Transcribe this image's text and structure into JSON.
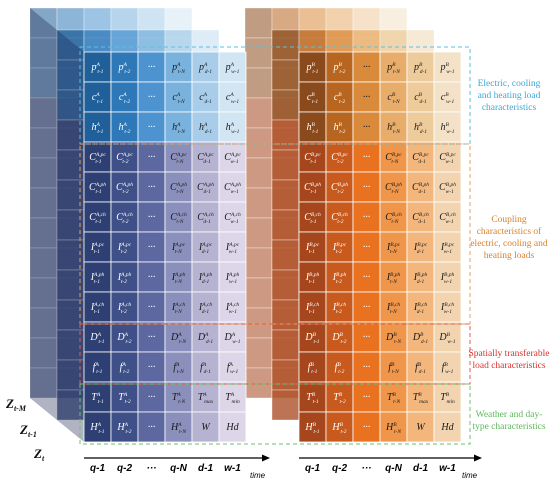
{
  "panels": [
    {
      "colors": [
        "#2e3f73",
        "#3f4f88",
        "#5c689f",
        "#8a8fbb",
        "#b6b3d2",
        "#dcd6e8"
      ],
      "top_colors": [
        "#1f5f9a",
        "#2f78b8",
        "#4c93cf",
        "#7ab2de",
        "#a8cdea",
        "#d2e5f3"
      ],
      "columns": [
        {
          "sub": "t-1"
        },
        {
          "sub": "t-2"
        },
        {
          "text": "···"
        },
        {
          "sub": "t-N"
        },
        {
          "sub": "d-1"
        },
        {
          "sub": "w-1"
        }
      ],
      "rows": [
        {
          "sym": "p",
          "sup": "A"
        },
        {
          "sym": "c",
          "sup": "A"
        },
        {
          "sym": "h",
          "sup": "A"
        },
        {
          "sym": "C",
          "sup": "A,pc"
        },
        {
          "sym": "C",
          "sup": "A,ph"
        },
        {
          "sym": "C",
          "sup": "A,ch"
        },
        {
          "sym": "I",
          "sup": "A,pc"
        },
        {
          "sym": "I",
          "sup": "A,ph"
        },
        {
          "sym": "I",
          "sup": "A,ch"
        },
        {
          "sym": "D",
          "sup": "A"
        },
        {
          "sym": "f",
          "sup": "A"
        },
        {
          "sym": "T",
          "sup": "A",
          "columns": [
            {
              "sub": "t-1"
            },
            {
              "sub": "t-2"
            },
            {
              "text": "···"
            },
            {
              "sub": "t-N"
            },
            {
              "sub": "max"
            },
            {
              "sub": "min"
            }
          ]
        },
        {
          "sym": "H",
          "sup": "A",
          "columns": [
            {
              "sub": "t-1"
            },
            {
              "sub": "t-2"
            },
            {
              "text": "···"
            },
            {
              "sub": "t-N"
            },
            {
              "text": "W"
            },
            {
              "text": "Hd"
            }
          ]
        }
      ]
    },
    {
      "colors": [
        "#a6461c",
        "#c85a1e",
        "#e8721f",
        "#f0964a",
        "#f3b77e",
        "#f2d5b0"
      ],
      "top_colors": [
        "#8a4a1c",
        "#b8651f",
        "#d98a3a",
        "#e8ad6a",
        "#eecb9a",
        "#f3e2c8"
      ],
      "columns": [
        {
          "sub": "t-1"
        },
        {
          "sub": "t-2"
        },
        {
          "text": "···"
        },
        {
          "sub": "t-N"
        },
        {
          "sub": "d-1"
        },
        {
          "sub": "w-1"
        }
      ],
      "rows": [
        {
          "sym": "p",
          "sup": "B"
        },
        {
          "sym": "c",
          "sup": "B"
        },
        {
          "sym": "h",
          "sup": "B"
        },
        {
          "sym": "C",
          "sup": "B,pc"
        },
        {
          "sym": "C",
          "sup": "B,ph"
        },
        {
          "sym": "C",
          "sup": "B,ch"
        },
        {
          "sym": "I",
          "sup": "B,pc"
        },
        {
          "sym": "I",
          "sup": "B,ph"
        },
        {
          "sym": "I",
          "sup": "B,ch"
        },
        {
          "sym": "D",
          "sup": "B"
        },
        {
          "sym": "f",
          "sup": "B"
        },
        {
          "sym": "T",
          "sup": "B",
          "columns": [
            {
              "sub": "t-1"
            },
            {
              "sub": "t-2"
            },
            {
              "text": "···"
            },
            {
              "sub": "t-N"
            },
            {
              "sub": "max"
            },
            {
              "sub": "min"
            }
          ]
        },
        {
          "sym": "H",
          "sup": "B",
          "columns": [
            {
              "sub": "t-1"
            },
            {
              "sub": "t-2"
            },
            {
              "text": "···"
            },
            {
              "sub": "t-N"
            },
            {
              "text": "W"
            },
            {
              "text": "Hd"
            }
          ]
        }
      ]
    }
  ],
  "time_ticks": [
    "q-1",
    "q-2",
    "···",
    "q-N",
    "d-1",
    "w-1"
  ],
  "axis_label": "time",
  "z_labels": [
    {
      "base": "Z",
      "sub": "t-M"
    },
    {
      "base": "Z",
      "sub": "t-1"
    },
    {
      "base": "Z",
      "sub": "t"
    }
  ],
  "annotations": [
    {
      "lines": [
        "Electric, cooling",
        "and heating load",
        "characteristics"
      ],
      "color": "#3aa7d8"
    },
    {
      "lines": [
        "Coupling",
        "characteristics of",
        "electric, cooling and",
        "heating loads"
      ],
      "color": "#d9822b"
    },
    {
      "lines": [
        "Spatially transferable",
        "load characteristics"
      ],
      "color": "#d8322a"
    },
    {
      "lines": [
        "Weather and day-",
        "type characteristics"
      ],
      "color": "#5cb85c"
    }
  ]
}
